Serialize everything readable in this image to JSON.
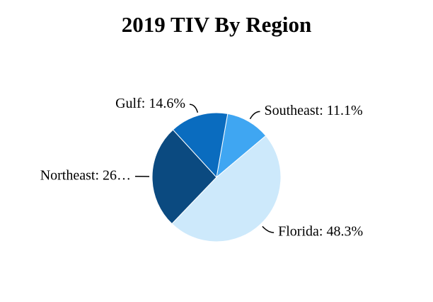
{
  "chart_data": {
    "type": "pie",
    "title": "2019 TIV By Region",
    "values": [
      11.1,
      48.3,
      26.0,
      14.6
    ],
    "value_labels": [
      "Southeast: 11.1%",
      "Florida: 48.3%",
      "Northeast: 26…",
      "Gulf: 14.6%"
    ],
    "colors": [
      "#3fa6f2",
      "#cde9fb",
      "#0b4a80",
      "#0a6cbf"
    ]
  }
}
